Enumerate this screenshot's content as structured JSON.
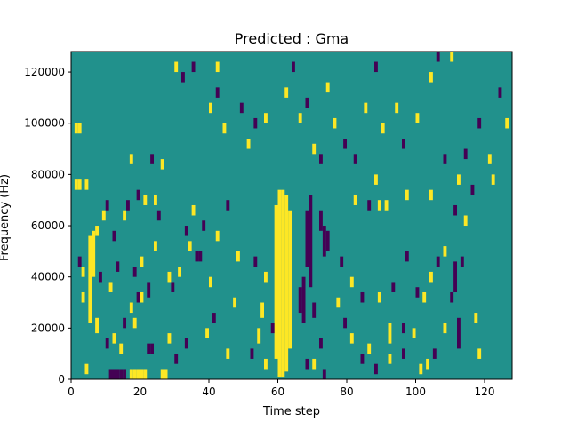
{
  "chart_data": {
    "type": "heatmap",
    "title": "Predicted : Gma",
    "xlabel": "Time step",
    "ylabel": "Frequency (Hz)",
    "xlim": [
      0,
      128
    ],
    "ylim": [
      0,
      128000
    ],
    "xticks": [
      0,
      20,
      40,
      60,
      80,
      100,
      120
    ],
    "yticks": [
      0,
      20000,
      40000,
      60000,
      80000,
      100000,
      120000
    ],
    "xtick_labels": [
      "0",
      "20",
      "40",
      "60",
      "80",
      "100",
      "120"
    ],
    "ytick_labels": [
      "0",
      "20000",
      "40000",
      "60000",
      "80000",
      "100000",
      "120000"
    ],
    "grid": false,
    "colors": {
      "background": "#21918c",
      "high": "#fde725",
      "low": "#440154"
    },
    "value_levels": {
      "background": 0,
      "high": 1,
      "low": -1
    },
    "cells": [
      {
        "x": 60,
        "y0": 1000,
        "y1": 74000,
        "v": 1
      },
      {
        "x": 61,
        "y0": 1000,
        "y1": 74000,
        "v": 1
      },
      {
        "x": 62,
        "y0": 3000,
        "y1": 72000,
        "v": 1
      },
      {
        "x": 59,
        "y0": 8000,
        "y1": 68000,
        "v": 1
      },
      {
        "x": 63,
        "y0": 12000,
        "y1": 66000,
        "v": 1
      },
      {
        "x": 68,
        "y0": 44000,
        "y1": 66000,
        "v": -1
      },
      {
        "x": 69,
        "y0": 36000,
        "y1": 72000,
        "v": -1
      },
      {
        "x": 67,
        "y0": 22000,
        "y1": 40000,
        "v": -1
      },
      {
        "x": 72,
        "y0": 58000,
        "y1": 66000,
        "v": -1
      },
      {
        "x": 73,
        "y0": 48000,
        "y1": 60000,
        "v": -1
      },
      {
        "x": 74,
        "y0": 50000,
        "y1": 58000,
        "v": -1
      },
      {
        "x": 66,
        "y0": 26000,
        "y1": 36000,
        "v": -1
      },
      {
        "x": 70,
        "y0": 24000,
        "y1": 30000,
        "v": -1
      },
      {
        "x": 11,
        "y0": 0,
        "y1": 4000,
        "v": -1
      },
      {
        "x": 12,
        "y0": 0,
        "y1": 4000,
        "v": -1
      },
      {
        "x": 13,
        "y0": 0,
        "y1": 4000,
        "v": -1
      },
      {
        "x": 14,
        "y0": 0,
        "y1": 4000,
        "v": -1
      },
      {
        "x": 15,
        "y0": 0,
        "y1": 4000,
        "v": -1
      },
      {
        "x": 17,
        "y0": 0,
        "y1": 4000,
        "v": 1
      },
      {
        "x": 18,
        "y0": 0,
        "y1": 4000,
        "v": 1
      },
      {
        "x": 19,
        "y0": 0,
        "y1": 4000,
        "v": 1
      },
      {
        "x": 20,
        "y0": 0,
        "y1": 4000,
        "v": 1
      },
      {
        "x": 21,
        "y0": 0,
        "y1": 4000,
        "v": 1
      },
      {
        "x": 26,
        "y0": 0,
        "y1": 4000,
        "v": 1
      },
      {
        "x": 27,
        "y0": 0,
        "y1": 4000,
        "v": 1
      },
      {
        "x": 22,
        "y0": 10000,
        "y1": 14000,
        "v": -1
      },
      {
        "x": 23,
        "y0": 10000,
        "y1": 14000,
        "v": -1
      },
      {
        "x": 22,
        "y0": 32000,
        "y1": 38000,
        "v": -1
      },
      {
        "x": 28,
        "y0": 38000,
        "y1": 42000,
        "v": 1
      },
      {
        "x": 35,
        "y0": 64000,
        "y1": 68000,
        "v": 1
      },
      {
        "x": 36,
        "y0": 46000,
        "y1": 50000,
        "v": -1
      },
      {
        "x": 37,
        "y0": 46000,
        "y1": 50000,
        "v": -1
      },
      {
        "x": 5,
        "y0": 22000,
        "y1": 56000,
        "v": 1
      },
      {
        "x": 6,
        "y0": 40000,
        "y1": 58000,
        "v": 1
      },
      {
        "x": 4,
        "y0": 74000,
        "y1": 78000,
        "v": 1
      },
      {
        "x": 1,
        "y0": 74000,
        "y1": 78000,
        "v": 1
      },
      {
        "x": 2,
        "y0": 74000,
        "y1": 78000,
        "v": 1
      },
      {
        "x": 1,
        "y0": 96000,
        "y1": 100000,
        "v": 1
      },
      {
        "x": 2,
        "y0": 96000,
        "y1": 100000,
        "v": 1
      },
      {
        "x": 7,
        "y0": 56000,
        "y1": 60000,
        "v": 1
      },
      {
        "x": 3,
        "y0": 40000,
        "y1": 44000,
        "v": 1
      },
      {
        "x": 3,
        "y0": 30000,
        "y1": 34000,
        "v": 1
      },
      {
        "x": 7,
        "y0": 18000,
        "y1": 24000,
        "v": 1
      },
      {
        "x": 4,
        "y0": 2000,
        "y1": 6000,
        "v": 1
      },
      {
        "x": 2,
        "y0": 44000,
        "y1": 48000,
        "v": -1
      },
      {
        "x": 8,
        "y0": 38000,
        "y1": 42000,
        "v": -1
      },
      {
        "x": 9,
        "y0": 62000,
        "y1": 66000,
        "v": 1
      },
      {
        "x": 10,
        "y0": 66000,
        "y1": 70000,
        "v": -1
      },
      {
        "x": 12,
        "y0": 54000,
        "y1": 58000,
        "v": -1
      },
      {
        "x": 11,
        "y0": 34000,
        "y1": 38000,
        "v": 1
      },
      {
        "x": 13,
        "y0": 42000,
        "y1": 46000,
        "v": -1
      },
      {
        "x": 15,
        "y0": 62000,
        "y1": 66000,
        "v": 1
      },
      {
        "x": 16,
        "y0": 66000,
        "y1": 70000,
        "v": -1
      },
      {
        "x": 17,
        "y0": 84000,
        "y1": 88000,
        "v": 1
      },
      {
        "x": 19,
        "y0": 70000,
        "y1": 74000,
        "v": -1
      },
      {
        "x": 21,
        "y0": 68000,
        "y1": 72000,
        "v": 1
      },
      {
        "x": 24,
        "y0": 68000,
        "y1": 72000,
        "v": 1
      },
      {
        "x": 23,
        "y0": 84000,
        "y1": 88000,
        "v": -1
      },
      {
        "x": 26,
        "y0": 82000,
        "y1": 86000,
        "v": 1
      },
      {
        "x": 25,
        "y0": 62000,
        "y1": 66000,
        "v": -1
      },
      {
        "x": 24,
        "y0": 50000,
        "y1": 54000,
        "v": 1
      },
      {
        "x": 20,
        "y0": 44000,
        "y1": 48000,
        "v": 1
      },
      {
        "x": 18,
        "y0": 40000,
        "y1": 44000,
        "v": -1
      },
      {
        "x": 19,
        "y0": 30000,
        "y1": 34000,
        "v": -1
      },
      {
        "x": 17,
        "y0": 26000,
        "y1": 30000,
        "v": 1
      },
      {
        "x": 15,
        "y0": 20000,
        "y1": 24000,
        "v": -1
      },
      {
        "x": 12,
        "y0": 14000,
        "y1": 18000,
        "v": 1
      },
      {
        "x": 10,
        "y0": 12000,
        "y1": 16000,
        "v": -1
      },
      {
        "x": 14,
        "y0": 10000,
        "y1": 14000,
        "v": 1
      },
      {
        "x": 18,
        "y0": 20000,
        "y1": 24000,
        "v": 1
      },
      {
        "x": 20,
        "y0": 30000,
        "y1": 34000,
        "v": 1
      },
      {
        "x": 29,
        "y0": 34000,
        "y1": 38000,
        "v": -1
      },
      {
        "x": 31,
        "y0": 40000,
        "y1": 44000,
        "v": 1
      },
      {
        "x": 33,
        "y0": 56000,
        "y1": 60000,
        "v": -1
      },
      {
        "x": 34,
        "y0": 50000,
        "y1": 54000,
        "v": 1
      },
      {
        "x": 38,
        "y0": 58000,
        "y1": 62000,
        "v": -1
      },
      {
        "x": 40,
        "y0": 36000,
        "y1": 40000,
        "v": 1
      },
      {
        "x": 41,
        "y0": 22000,
        "y1": 26000,
        "v": -1
      },
      {
        "x": 39,
        "y0": 16000,
        "y1": 20000,
        "v": 1
      },
      {
        "x": 33,
        "y0": 12000,
        "y1": 16000,
        "v": -1
      },
      {
        "x": 45,
        "y0": 8000,
        "y1": 12000,
        "v": 1
      },
      {
        "x": 30,
        "y0": 6000,
        "y1": 10000,
        "v": -1
      },
      {
        "x": 28,
        "y0": 14000,
        "y1": 18000,
        "v": 1
      },
      {
        "x": 30,
        "y0": 120000,
        "y1": 124000,
        "v": 1
      },
      {
        "x": 32,
        "y0": 116000,
        "y1": 120000,
        "v": -1
      },
      {
        "x": 35,
        "y0": 120000,
        "y1": 124000,
        "v": -1
      },
      {
        "x": 42,
        "y0": 120000,
        "y1": 124000,
        "v": 1
      },
      {
        "x": 40,
        "y0": 104000,
        "y1": 108000,
        "v": 1
      },
      {
        "x": 42,
        "y0": 110000,
        "y1": 114000,
        "v": -1
      },
      {
        "x": 49,
        "y0": 104000,
        "y1": 108000,
        "v": -1
      },
      {
        "x": 44,
        "y0": 96000,
        "y1": 100000,
        "v": 1
      },
      {
        "x": 51,
        "y0": 90000,
        "y1": 94000,
        "v": 1
      },
      {
        "x": 53,
        "y0": 98000,
        "y1": 102000,
        "v": -1
      },
      {
        "x": 56,
        "y0": 100000,
        "y1": 104000,
        "v": 1
      },
      {
        "x": 62,
        "y0": 110000,
        "y1": 114000,
        "v": 1
      },
      {
        "x": 64,
        "y0": 120000,
        "y1": 124000,
        "v": -1
      },
      {
        "x": 66,
        "y0": 100000,
        "y1": 104000,
        "v": 1
      },
      {
        "x": 68,
        "y0": 106000,
        "y1": 110000,
        "v": -1
      },
      {
        "x": 70,
        "y0": 88000,
        "y1": 92000,
        "v": 1
      },
      {
        "x": 72,
        "y0": 84000,
        "y1": 88000,
        "v": -1
      },
      {
        "x": 74,
        "y0": 112000,
        "y1": 116000,
        "v": 1
      },
      {
        "x": 76,
        "y0": 98000,
        "y1": 102000,
        "v": 1
      },
      {
        "x": 79,
        "y0": 90000,
        "y1": 94000,
        "v": -1
      },
      {
        "x": 82,
        "y0": 84000,
        "y1": 88000,
        "v": -1
      },
      {
        "x": 85,
        "y0": 104000,
        "y1": 108000,
        "v": 1
      },
      {
        "x": 88,
        "y0": 120000,
        "y1": 124000,
        "v": -1
      },
      {
        "x": 90,
        "y0": 96000,
        "y1": 100000,
        "v": 1
      },
      {
        "x": 94,
        "y0": 104000,
        "y1": 108000,
        "v": 1
      },
      {
        "x": 96,
        "y0": 90000,
        "y1": 94000,
        "v": -1
      },
      {
        "x": 100,
        "y0": 100000,
        "y1": 104000,
        "v": 1
      },
      {
        "x": 104,
        "y0": 116000,
        "y1": 120000,
        "v": 1
      },
      {
        "x": 106,
        "y0": 124000,
        "y1": 128000,
        "v": -1
      },
      {
        "x": 110,
        "y0": 124000,
        "y1": 128000,
        "v": 1
      },
      {
        "x": 108,
        "y0": 84000,
        "y1": 88000,
        "v": -1
      },
      {
        "x": 112,
        "y0": 76000,
        "y1": 80000,
        "v": 1
      },
      {
        "x": 114,
        "y0": 86000,
        "y1": 90000,
        "v": -1
      },
      {
        "x": 118,
        "y0": 98000,
        "y1": 102000,
        "v": -1
      },
      {
        "x": 121,
        "y0": 84000,
        "y1": 88000,
        "v": 1
      },
      {
        "x": 124,
        "y0": 110000,
        "y1": 114000,
        "v": -1
      },
      {
        "x": 126,
        "y0": 98000,
        "y1": 102000,
        "v": 1
      },
      {
        "x": 122,
        "y0": 76000,
        "y1": 80000,
        "v": 1
      },
      {
        "x": 116,
        "y0": 72000,
        "y1": 76000,
        "v": -1
      },
      {
        "x": 111,
        "y0": 64000,
        "y1": 68000,
        "v": -1
      },
      {
        "x": 104,
        "y0": 70000,
        "y1": 74000,
        "v": 1
      },
      {
        "x": 97,
        "y0": 70000,
        "y1": 74000,
        "v": 1
      },
      {
        "x": 89,
        "y0": 66000,
        "y1": 70000,
        "v": 1
      },
      {
        "x": 91,
        "y0": 66000,
        "y1": 70000,
        "v": 1
      },
      {
        "x": 86,
        "y0": 66000,
        "y1": 70000,
        "v": -1
      },
      {
        "x": 88,
        "y0": 76000,
        "y1": 80000,
        "v": 1
      },
      {
        "x": 82,
        "y0": 68000,
        "y1": 72000,
        "v": 1
      },
      {
        "x": 97,
        "y0": 46000,
        "y1": 50000,
        "v": -1
      },
      {
        "x": 104,
        "y0": 38000,
        "y1": 42000,
        "v": 1
      },
      {
        "x": 108,
        "y0": 48000,
        "y1": 52000,
        "v": 1
      },
      {
        "x": 111,
        "y0": 34000,
        "y1": 46000,
        "v": -1
      },
      {
        "x": 114,
        "y0": 60000,
        "y1": 64000,
        "v": 1
      },
      {
        "x": 113,
        "y0": 44000,
        "y1": 48000,
        "v": -1
      },
      {
        "x": 110,
        "y0": 30000,
        "y1": 34000,
        "v": -1
      },
      {
        "x": 106,
        "y0": 44000,
        "y1": 48000,
        "v": -1
      },
      {
        "x": 102,
        "y0": 30000,
        "y1": 34000,
        "v": 1
      },
      {
        "x": 100,
        "y0": 32000,
        "y1": 36000,
        "v": -1
      },
      {
        "x": 93,
        "y0": 34000,
        "y1": 38000,
        "v": -1
      },
      {
        "x": 89,
        "y0": 30000,
        "y1": 34000,
        "v": 1
      },
      {
        "x": 84,
        "y0": 30000,
        "y1": 34000,
        "v": -1
      },
      {
        "x": 81,
        "y0": 36000,
        "y1": 40000,
        "v": 1
      },
      {
        "x": 78,
        "y0": 44000,
        "y1": 48000,
        "v": -1
      },
      {
        "x": 77,
        "y0": 28000,
        "y1": 32000,
        "v": 1
      },
      {
        "x": 79,
        "y0": 20000,
        "y1": 24000,
        "v": -1
      },
      {
        "x": 81,
        "y0": 14000,
        "y1": 18000,
        "v": 1
      },
      {
        "x": 84,
        "y0": 6000,
        "y1": 10000,
        "v": -1
      },
      {
        "x": 88,
        "y0": 2000,
        "y1": 6000,
        "v": -1
      },
      {
        "x": 92,
        "y0": 6000,
        "y1": 10000,
        "v": 1
      },
      {
        "x": 96,
        "y0": 8000,
        "y1": 12000,
        "v": -1
      },
      {
        "x": 99,
        "y0": 16000,
        "y1": 20000,
        "v": 1
      },
      {
        "x": 103,
        "y0": 4000,
        "y1": 8000,
        "v": 1
      },
      {
        "x": 105,
        "y0": 8000,
        "y1": 12000,
        "v": -1
      },
      {
        "x": 108,
        "y0": 18000,
        "y1": 22000,
        "v": 1
      },
      {
        "x": 112,
        "y0": 12000,
        "y1": 24000,
        "v": -1
      },
      {
        "x": 117,
        "y0": 22000,
        "y1": 26000,
        "v": 1
      },
      {
        "x": 118,
        "y0": 8000,
        "y1": 12000,
        "v": 1
      },
      {
        "x": 101,
        "y0": 2000,
        "y1": 6000,
        "v": 1
      },
      {
        "x": 96,
        "y0": 18000,
        "y1": 22000,
        "v": -1
      },
      {
        "x": 92,
        "y0": 14000,
        "y1": 22000,
        "v": 1
      },
      {
        "x": 86,
        "y0": 10000,
        "y1": 14000,
        "v": 1
      },
      {
        "x": 72,
        "y0": 12000,
        "y1": 16000,
        "v": -1
      },
      {
        "x": 73,
        "y0": 0,
        "y1": 4000,
        "v": -1
      },
      {
        "x": 68,
        "y0": 4000,
        "y1": 8000,
        "v": -1
      },
      {
        "x": 70,
        "y0": 4000,
        "y1": 8000,
        "v": 1
      },
      {
        "x": 56,
        "y0": 4000,
        "y1": 8000,
        "v": 1
      },
      {
        "x": 52,
        "y0": 8000,
        "y1": 12000,
        "v": -1
      },
      {
        "x": 54,
        "y0": 14000,
        "y1": 20000,
        "v": 1
      },
      {
        "x": 58,
        "y0": 18000,
        "y1": 22000,
        "v": -1
      },
      {
        "x": 55,
        "y0": 24000,
        "y1": 30000,
        "v": 1
      },
      {
        "x": 53,
        "y0": 44000,
        "y1": 48000,
        "v": -1
      },
      {
        "x": 56,
        "y0": 38000,
        "y1": 42000,
        "v": 1
      },
      {
        "x": 47,
        "y0": 28000,
        "y1": 32000,
        "v": 1
      },
      {
        "x": 48,
        "y0": 46000,
        "y1": 50000,
        "v": 1
      },
      {
        "x": 45,
        "y0": 66000,
        "y1": 70000,
        "v": -1
      },
      {
        "x": 42,
        "y0": 54000,
        "y1": 58000,
        "v": 1
      }
    ]
  }
}
